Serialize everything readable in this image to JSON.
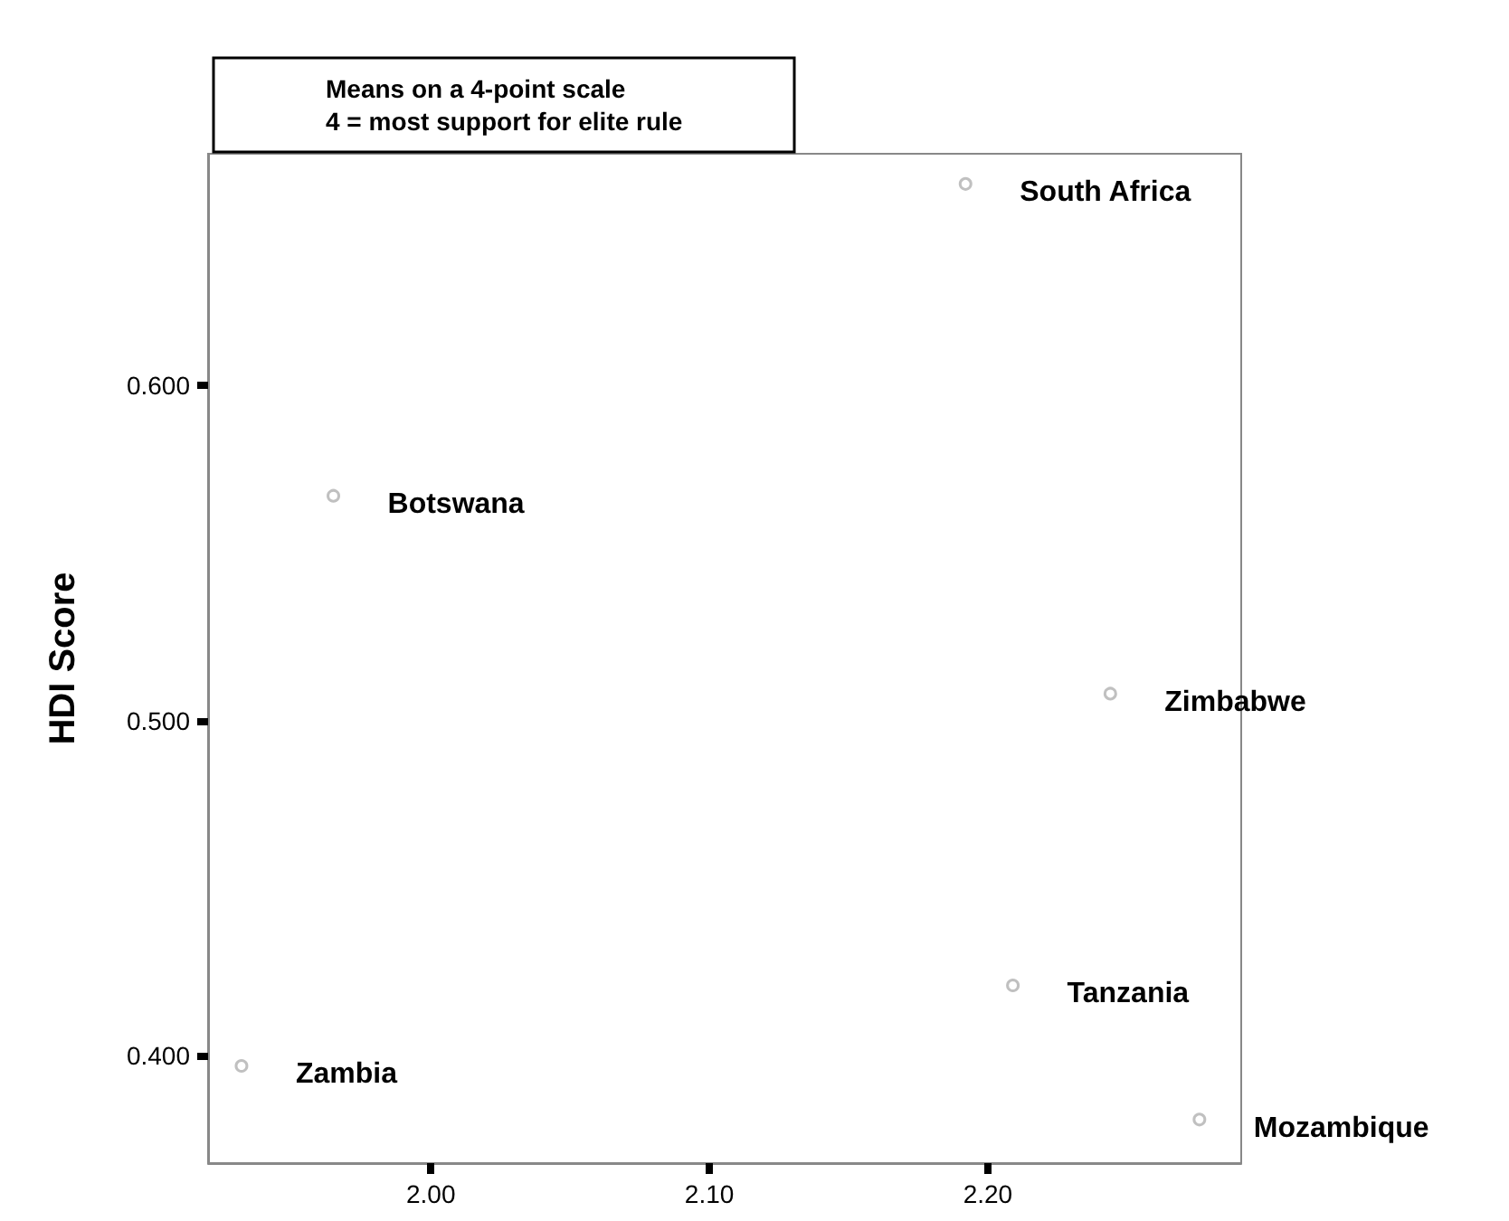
{
  "chart_data": {
    "type": "scatter",
    "title": "Means on a 4-point scale",
    "subtitle": "4 = most support for elite rule",
    "ylabel": "HDI Score",
    "x": [
      2.192,
      1.965,
      2.244,
      2.209,
      1.932,
      2.276
    ],
    "values": [
      0.66,
      0.567,
      0.508,
      0.421,
      0.397,
      0.381
    ],
    "color": "#b0b0b0",
    "marker": "circle",
    "grid": false,
    "xlim": [
      1.92,
      2.291
    ],
    "xticks": [
      {
        "value": 2.0,
        "label": "2.00"
      },
      {
        "value": 2.1,
        "label": "2.10"
      },
      {
        "value": 2.2,
        "label": "2.20"
      }
    ],
    "ylim": [
      0.368,
      0.669
    ],
    "yticks": [
      {
        "value": 0.4,
        "label": "0.400"
      },
      {
        "value": 0.5,
        "label": "0.500"
      },
      {
        "value": 0.6,
        "label": "0.600"
      }
    ],
    "annotations": [
      {
        "text": "South Africa",
        "x": 2.192,
        "y": 0.66
      },
      {
        "text": "Botswana",
        "x": 1.965,
        "y": 0.567
      },
      {
        "text": "Zimbabwe",
        "x": 2.244,
        "y": 0.508
      },
      {
        "text": "Tanzania",
        "x": 2.209,
        "y": 0.421
      },
      {
        "text": "Zambia",
        "x": 1.932,
        "y": 0.397
      },
      {
        "text": "Mozambique",
        "x": 2.276,
        "y": 0.381
      }
    ]
  }
}
